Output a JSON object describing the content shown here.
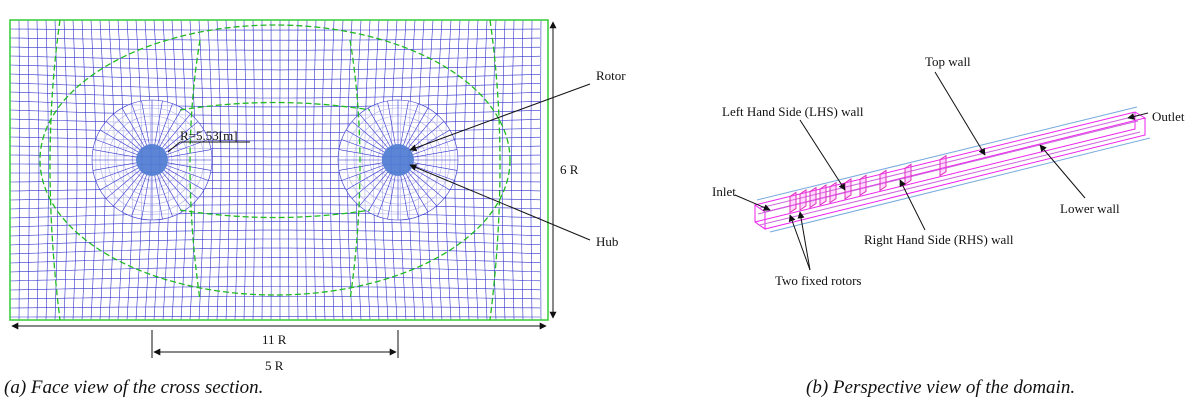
{
  "panel_a": {
    "labels": {
      "radius": "R=5.53[m]",
      "rotor": "Rotor",
      "height": "6 R",
      "hub": "Hub",
      "width": "11 R",
      "spacing": "5 R"
    },
    "caption": "(a) Face view of the cross section."
  },
  "panel_b": {
    "labels": {
      "top": "Top wall",
      "outlet": "Outlet",
      "lhs": "Left Hand Side (LHS) wall",
      "inlet": "Inlet",
      "lower": "Lower wall",
      "rhs": "Right Hand Side (RHS) wall",
      "rotors": "Two fixed rotors"
    },
    "caption": "(b) Perspective view of the domain."
  }
}
